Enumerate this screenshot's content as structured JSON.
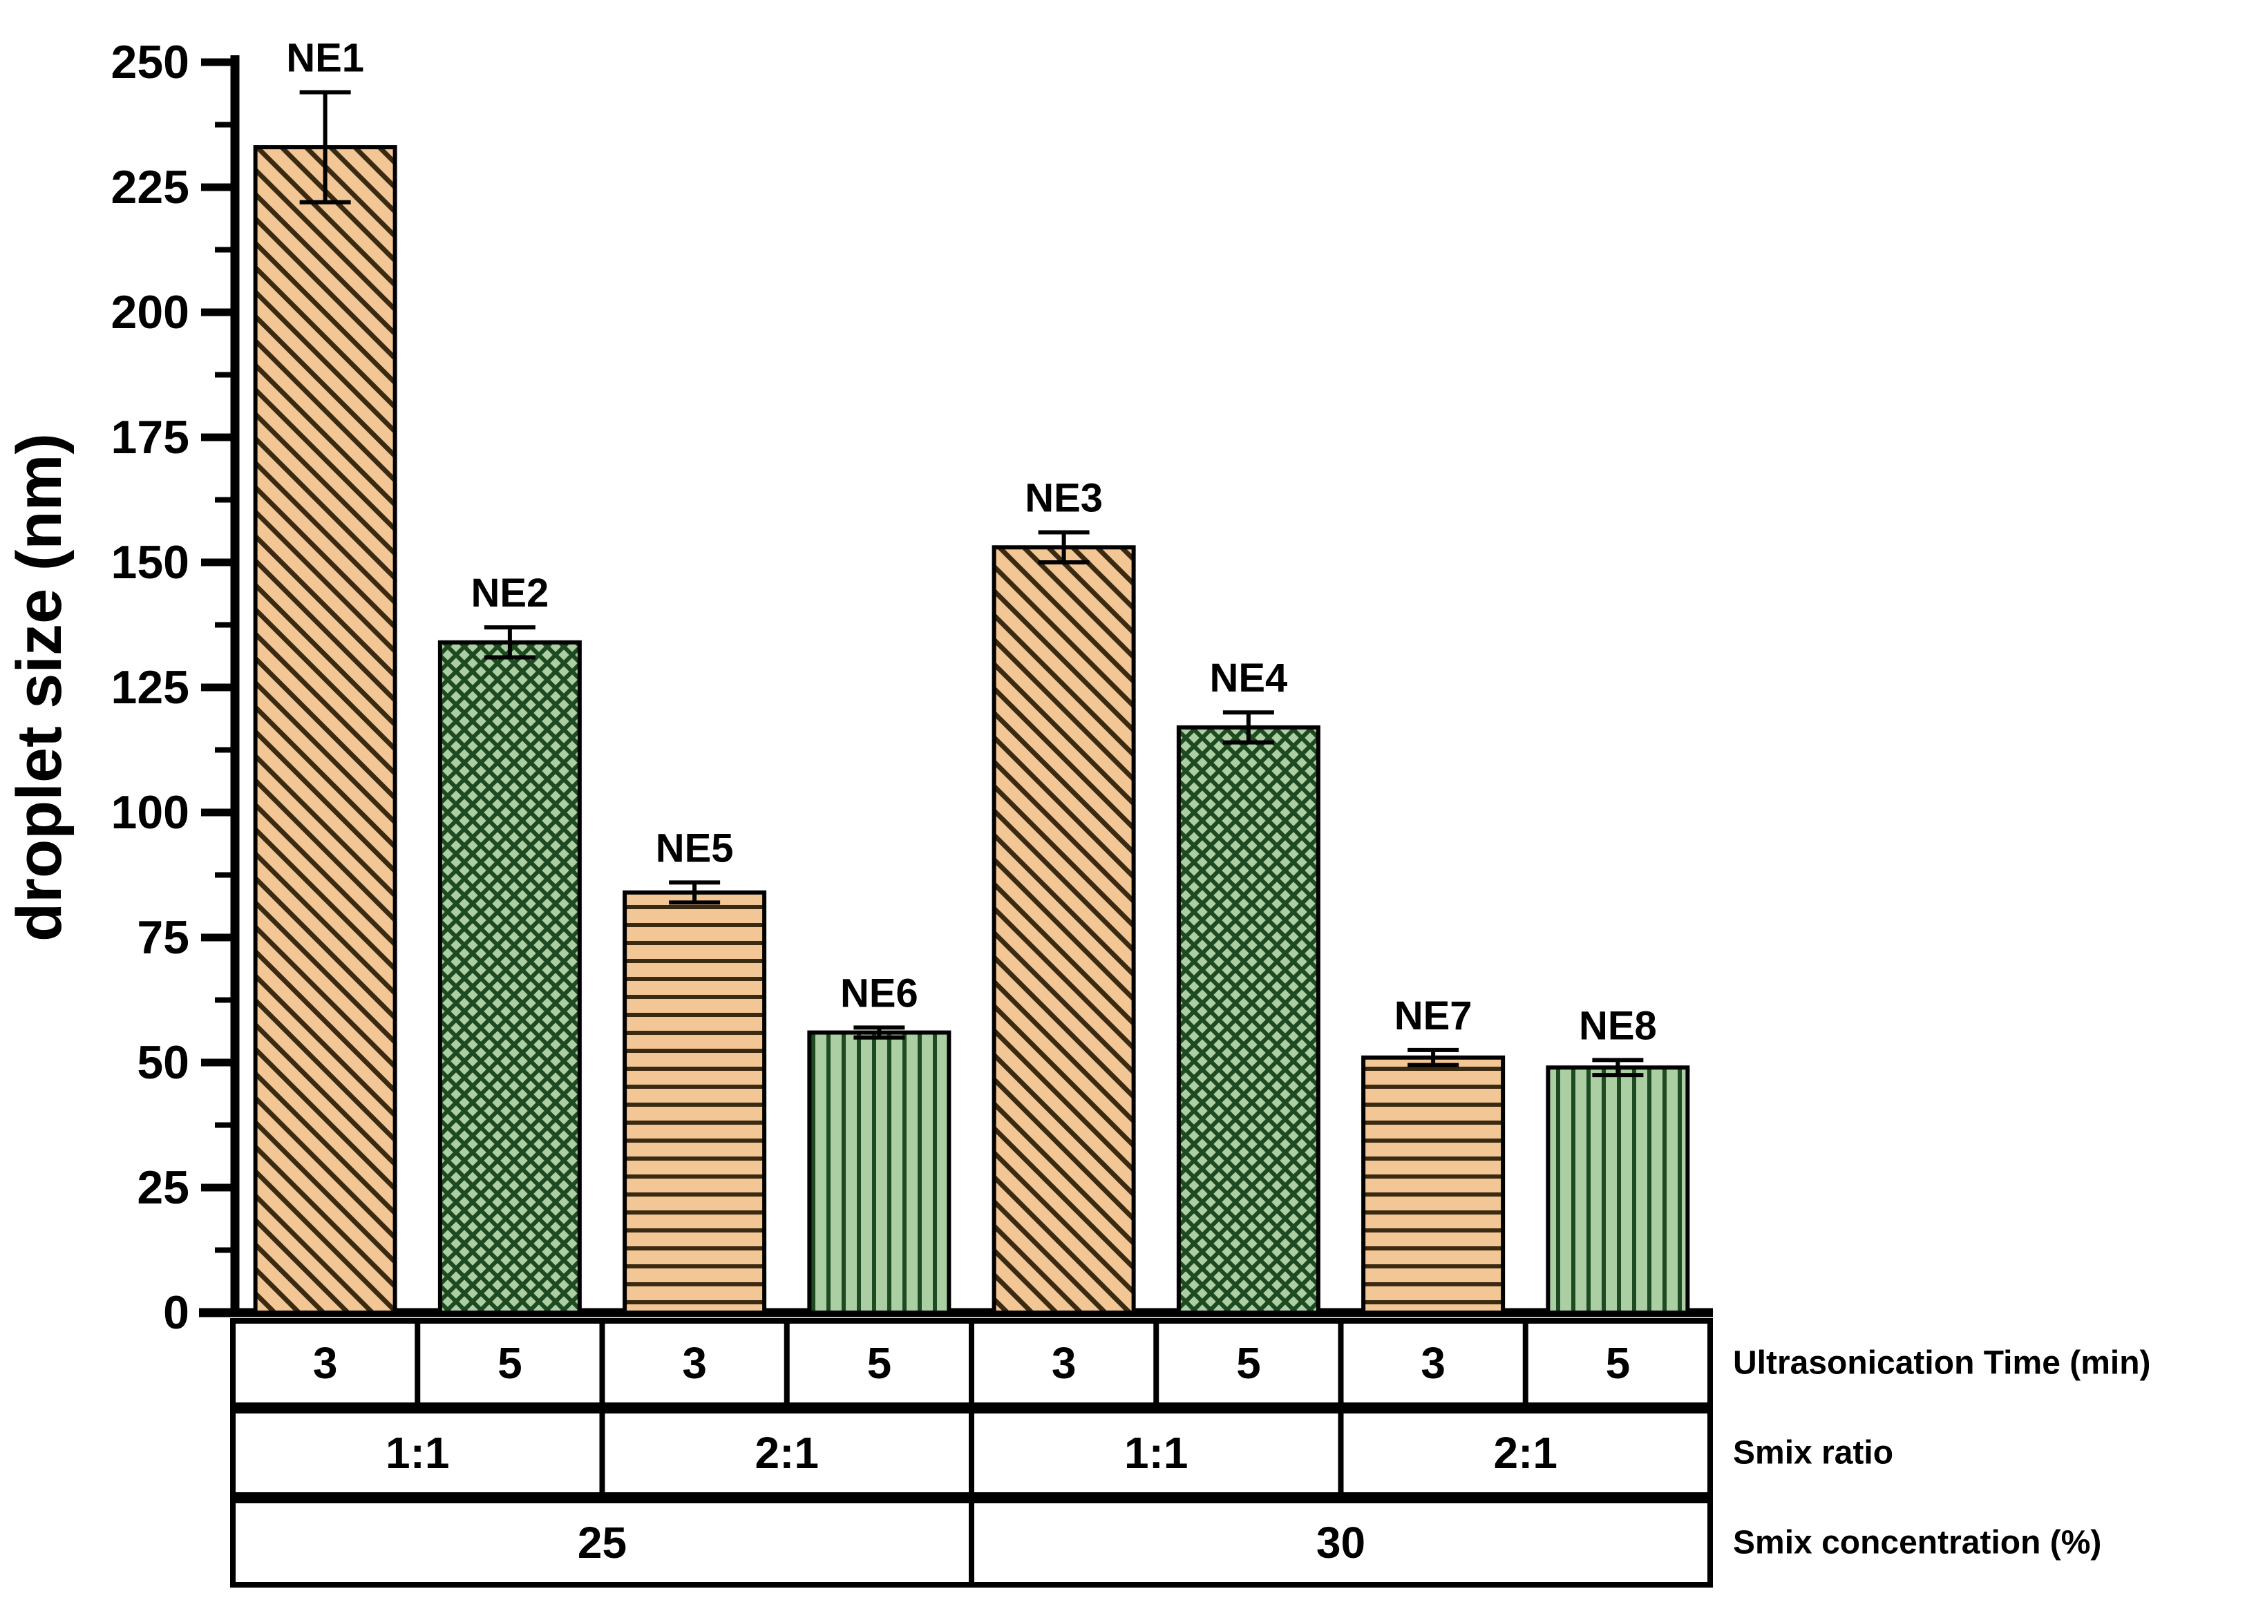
{
  "chart_data": {
    "type": "bar",
    "title": "",
    "ylabel": "droplet size (nm)",
    "xlabel": "",
    "ylim": [
      0,
      250
    ],
    "y_major_step": 25,
    "y_minor_step": 12.5,
    "y_tick_labels": [
      "0",
      "25",
      "50",
      "75",
      "100",
      "125",
      "150",
      "175",
      "200",
      "225",
      "250"
    ],
    "grid": false,
    "legend": "none",
    "bars": [
      {
        "label": "NE1",
        "value": 233,
        "error": 11,
        "pattern": "diagonal",
        "time": "3"
      },
      {
        "label": "NE2",
        "value": 134,
        "error": 3,
        "pattern": "crosshatch",
        "time": "5"
      },
      {
        "label": "NE5",
        "value": 84,
        "error": 2,
        "pattern": "horizontal",
        "time": "3"
      },
      {
        "label": "NE6",
        "value": 56,
        "error": 1,
        "pattern": "vertical",
        "time": "5"
      },
      {
        "label": "NE3",
        "value": 153,
        "error": 3,
        "pattern": "diagonal",
        "time": "3"
      },
      {
        "label": "NE4",
        "value": 117,
        "error": 3,
        "pattern": "crosshatch",
        "time": "5"
      },
      {
        "label": "NE7",
        "value": 51,
        "error": 1.5,
        "pattern": "horizontal",
        "time": "3"
      },
      {
        "label": "NE8",
        "value": 49,
        "error": 1.5,
        "pattern": "vertical",
        "time": "5"
      }
    ],
    "x_table": {
      "rows": [
        {
          "name": "time",
          "label": "Ultrasonication Time (min)",
          "cells": [
            {
              "text": "3",
              "span": 1
            },
            {
              "text": "5",
              "span": 1
            },
            {
              "text": "3",
              "span": 1
            },
            {
              "text": "5",
              "span": 1
            },
            {
              "text": "3",
              "span": 1
            },
            {
              "text": "5",
              "span": 1
            },
            {
              "text": "3",
              "span": 1
            },
            {
              "text": "5",
              "span": 1
            }
          ]
        },
        {
          "name": "ratio",
          "label": "Smix ratio",
          "cells": [
            {
              "text": "1:1",
              "span": 2
            },
            {
              "text": "2:1",
              "span": 2
            },
            {
              "text": "1:1",
              "span": 2
            },
            {
              "text": "2:1",
              "span": 2
            }
          ]
        },
        {
          "name": "conc",
          "label": "Smix concentration (%)",
          "cells": [
            {
              "text": "25",
              "span": 4
            },
            {
              "text": "30",
              "span": 4
            }
          ]
        }
      ]
    },
    "colors": {
      "orange_fill": "#F3C795",
      "orange_line": "#3A2A12",
      "green_fill": "#ABCFA3",
      "green_line": "#1E4A22",
      "axis": "#000000",
      "background": "#FFFFFF"
    }
  }
}
